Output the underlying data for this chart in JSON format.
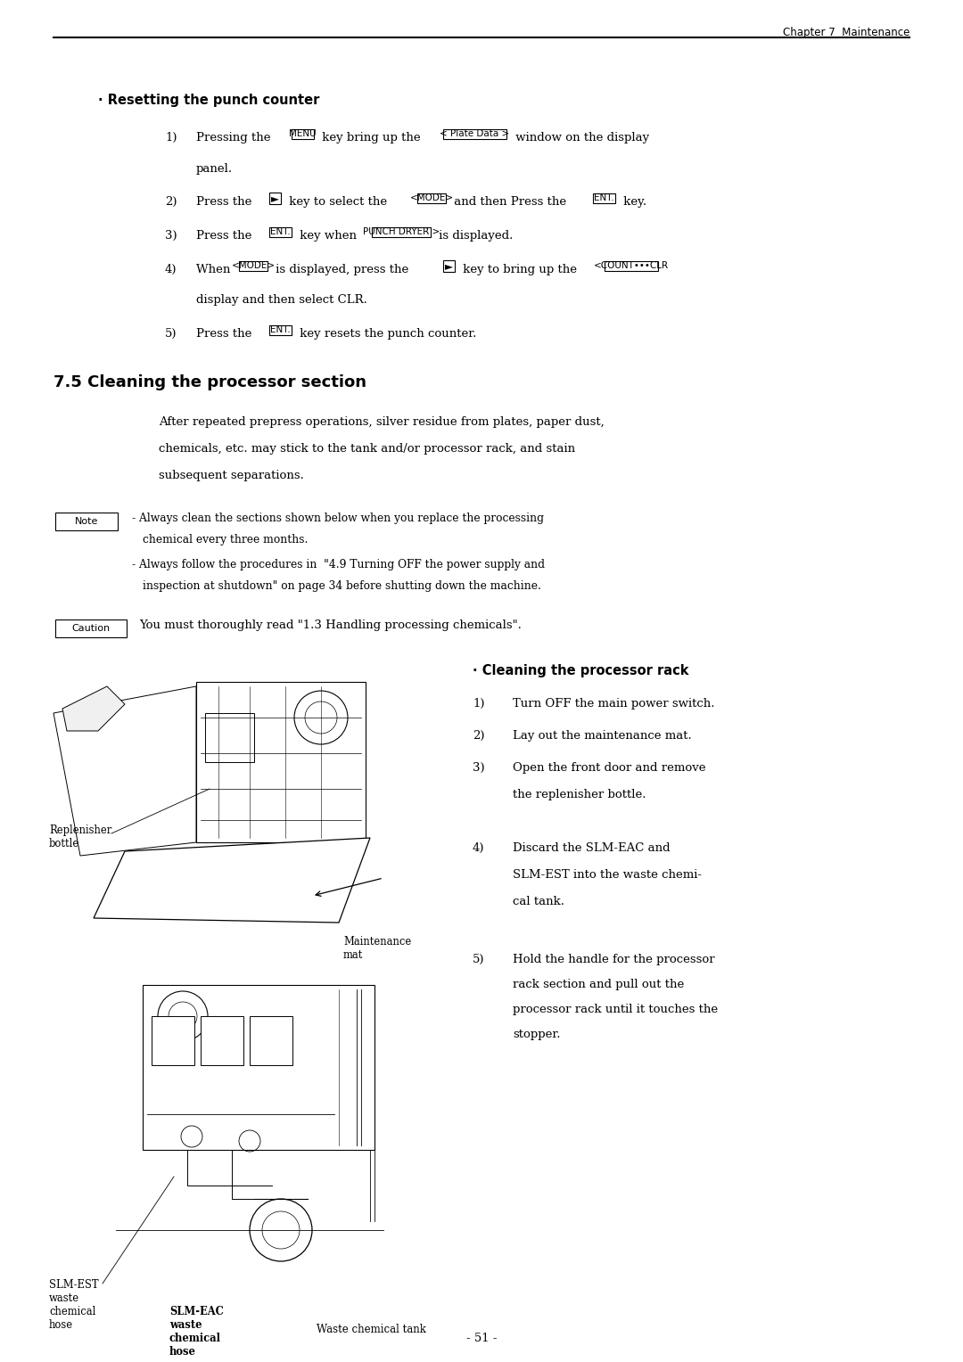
{
  "bg_color": "#ffffff",
  "page_width": 10.8,
  "page_height": 15.28,
  "header_text": "Chapter 7  Maintenance",
  "page_number": "- 51 -",
  "section_punch_title": "· Resetting the punch counter",
  "section_75_title": "7.5 Cleaning the processor section",
  "intro_lines": [
    "After repeated prepress operations, silver residue from plates, paper dust,",
    "chemicals, etc. may stick to the tank and/or processor rack, and stain",
    "subsequent separations."
  ],
  "note_line1": "- Always clean the sections shown below when you replace the processing",
  "note_line2": "chemical every three months.",
  "note_line3": "- Always follow the procedures in  \"4.9 Turning OFF the power supply and",
  "note_line4": "inspection at shutdown\" on page 34 before shutting down the machine.",
  "caution_text": "You must thoroughly read \"1.3 Handling processing chemicals\".",
  "cleaning_rack_title": "· Cleaning the processor rack",
  "rack_step1": "Turn OFF the main power switch.",
  "rack_step2": "Lay out the maintenance mat.",
  "rack_step3a": "Open the front door and remove",
  "rack_step3b": "the replenisher bottle.",
  "rack_step4a": "Discard the SLM-EAC and",
  "rack_step4b": "SLM-EST into the waste chemi-",
  "rack_step4c": "cal tank.",
  "rack_step5a": "Hold the handle for the processor",
  "rack_step5b": "rack section and pull out the",
  "rack_step5c": "processor rack until it touches the",
  "rack_step5d": "stopper.",
  "label_replenisher": "Replenisher\nbottle",
  "label_maintenance": "Maintenance\nmat",
  "label_slm_est": "SLM-EST\nwaste\nchemical\nhose",
  "label_slm_eac": "SLM-EAC\nwaste\nchemical\nhose",
  "label_waste_tank": "Waste chemical tank"
}
